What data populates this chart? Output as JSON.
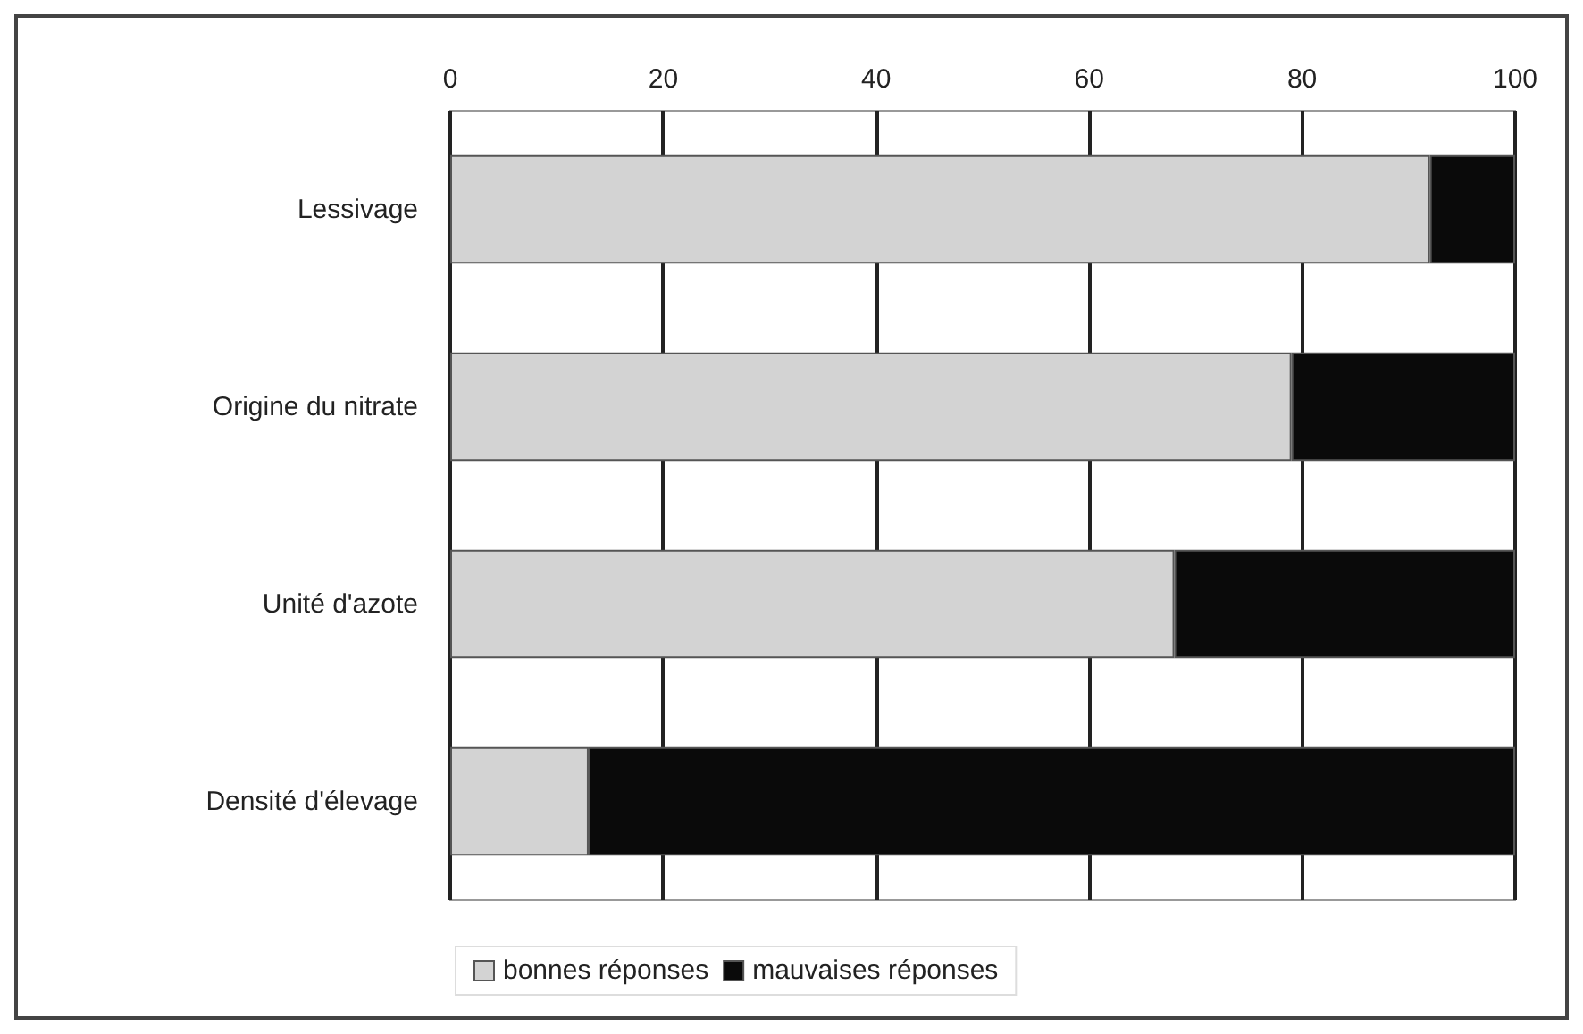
{
  "chart_data": {
    "type": "bar",
    "orientation": "horizontal",
    "stacked": true,
    "categories": [
      "Lessivage",
      "Origine du nitrate",
      "Unité d'azote",
      "Densité d'élevage"
    ],
    "series": [
      {
        "name": "bonnes réponses",
        "color": "#d3d3d3",
        "values": [
          92,
          79,
          68,
          13
        ]
      },
      {
        "name": "mauvaises réponses",
        "color": "#0a0a0a",
        "values": [
          8,
          21,
          32,
          87
        ]
      }
    ],
    "xlim": [
      0,
      100
    ],
    "xticks": [
      0,
      20,
      40,
      60,
      80,
      100
    ],
    "grid": "x",
    "legend": "bottom"
  }
}
